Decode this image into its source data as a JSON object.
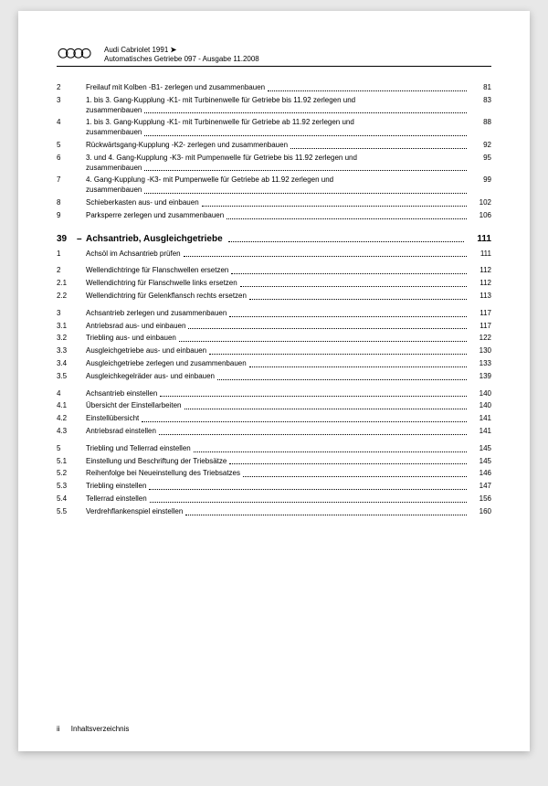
{
  "header": {
    "model": "Audi Cabriolet 1991",
    "arrow": "➤",
    "subtitle": "Automatisches Getriebe 097 - Ausgabe 11.2008"
  },
  "section_a": {
    "items": [
      {
        "num": "2",
        "label": "Freilauf mit Kolben -B1- zerlegen und zusammenbauen",
        "page": "81"
      },
      {
        "num": "3",
        "label_l1": "1. bis 3. Gang-Kupplung -K1- mit Turbinenwelle für Getriebe bis 11.92 zerlegen und",
        "label_l2": "zusammenbauen",
        "page": "83",
        "multi": true
      },
      {
        "num": "4",
        "label_l1": "1. bis 3. Gang-Kupplung -K1- mit Turbinenwelle für Getriebe ab 11.92 zerlegen und",
        "label_l2": "zusammenbauen",
        "page": "88",
        "multi": true
      },
      {
        "num": "5",
        "label": "Rückwärtsgang-Kupplung -K2- zerlegen und zusammenbauen",
        "page": "92"
      },
      {
        "num": "6",
        "label_l1": "3. und 4. Gang-Kupplung -K3- mit Pumpenwelle für Getriebe bis  11.92 zerlegen und",
        "label_l2": "zusammenbauen",
        "page": "95",
        "multi": true
      },
      {
        "num": "7",
        "label_l1": "4. Gang-Kupplung -K3- mit Pumpenwelle für Getriebe ab 11.92 zerlegen und",
        "label_l2": "zusammenbauen",
        "page": "99",
        "multi": true
      },
      {
        "num": "8",
        "label": "Schieberkasten aus- und einbauen",
        "page": "102"
      },
      {
        "num": "9",
        "label": "Parksperre zerlegen und zusammenbauen",
        "page": "106"
      }
    ]
  },
  "section_b": {
    "num": "39",
    "dash": "–",
    "title": "Achsantrieb, Ausgleichgetriebe",
    "page": "111",
    "groups": [
      [
        {
          "num": "1",
          "label": "Achsöl im Achsantrieb prüfen",
          "page": "111"
        }
      ],
      [
        {
          "num": "2",
          "label": "Wellendichtringe für Flanschwellen ersetzen",
          "page": "112"
        },
        {
          "num": "2.1",
          "label": "Wellendichtring für Flanschwelle links ersetzen",
          "page": "112"
        },
        {
          "num": "2.2",
          "label": "Wellendichtring für Gelenkflansch rechts ersetzen",
          "page": "113"
        }
      ],
      [
        {
          "num": "3",
          "label": "Achsantrieb zerlegen und zusammenbauen",
          "page": "117"
        },
        {
          "num": "3.1",
          "label": "Antriebsrad aus- und einbauen",
          "page": "117"
        },
        {
          "num": "3.2",
          "label": "Triebling aus- und einbauen",
          "page": "122"
        },
        {
          "num": "3.3",
          "label": "Ausgleichgetriebe aus- und einbauen",
          "page": "130"
        },
        {
          "num": "3.4",
          "label": "Ausgleichgetriebe zerlegen und zusammenbauen",
          "page": "133"
        },
        {
          "num": "3.5",
          "label": "Ausgleichkegelräder aus- und einbauen",
          "page": "139"
        }
      ],
      [
        {
          "num": "4",
          "label": "Achsantrieb einstellen",
          "page": "140"
        },
        {
          "num": "4.1",
          "label": "Übersicht der Einstellarbeiten",
          "page": "140"
        },
        {
          "num": "4.2",
          "label": "Einstellübersicht",
          "page": "141"
        },
        {
          "num": "4.3",
          "label": "Antriebsrad einstellen",
          "page": "141"
        }
      ],
      [
        {
          "num": "5",
          "label": "Triebling und Tellerrad einstellen",
          "page": "145"
        },
        {
          "num": "5.1",
          "label": "Einstellung und Beschriftung der Triebsätze",
          "page": "145"
        },
        {
          "num": "5.2",
          "label": "Reihenfolge bei Neueinstellung des Triebsatzes",
          "page": "146"
        },
        {
          "num": "5.3",
          "label": "Triebling einstellen",
          "page": "147"
        },
        {
          "num": "5.4",
          "label": "Tellerrad einstellen",
          "page": "156"
        },
        {
          "num": "5.5",
          "label": "Verdrehflankenspiel einstellen",
          "page": "160"
        }
      ]
    ]
  },
  "footer": {
    "page_num": "ii",
    "label": "Inhaltsverzeichnis"
  }
}
